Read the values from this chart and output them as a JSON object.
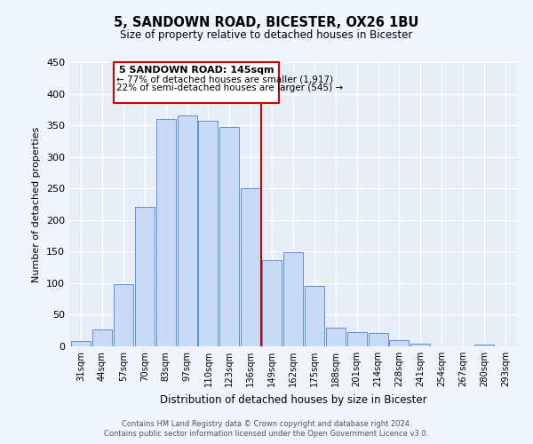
{
  "title": "5, SANDOWN ROAD, BICESTER, OX26 1BU",
  "subtitle": "Size of property relative to detached houses in Bicester",
  "xlabel": "Distribution of detached houses by size in Bicester",
  "ylabel": "Number of detached properties",
  "bar_labels": [
    "31sqm",
    "44sqm",
    "57sqm",
    "70sqm",
    "83sqm",
    "97sqm",
    "110sqm",
    "123sqm",
    "136sqm",
    "149sqm",
    "162sqm",
    "175sqm",
    "188sqm",
    "201sqm",
    "214sqm",
    "228sqm",
    "241sqm",
    "254sqm",
    "267sqm",
    "280sqm",
    "293sqm"
  ],
  "bar_values": [
    8,
    27,
    98,
    221,
    360,
    365,
    357,
    347,
    250,
    137,
    149,
    96,
    30,
    22,
    21,
    10,
    4,
    0,
    0,
    3,
    0
  ],
  "bar_color": "#c8daf5",
  "bar_edge_color": "#5b8fd4",
  "bg_color": "#e8eef8",
  "grid_color": "#ffffff",
  "vline_color": "#cc0000",
  "annotation_title": "5 SANDOWN ROAD: 145sqm",
  "annotation_line1": "← 77% of detached houses are smaller (1,917)",
  "annotation_line2": "22% of semi-detached houses are larger (545) →",
  "annotation_box_color": "#cc0000",
  "ylim": [
    0,
    450
  ],
  "yticks": [
    0,
    50,
    100,
    150,
    200,
    250,
    300,
    350,
    400,
    450
  ],
  "footer1": "Contains HM Land Registry data © Crown copyright and database right 2024.",
  "footer2": "Contains public sector information licensed under the Open Government Licence v3.0."
}
